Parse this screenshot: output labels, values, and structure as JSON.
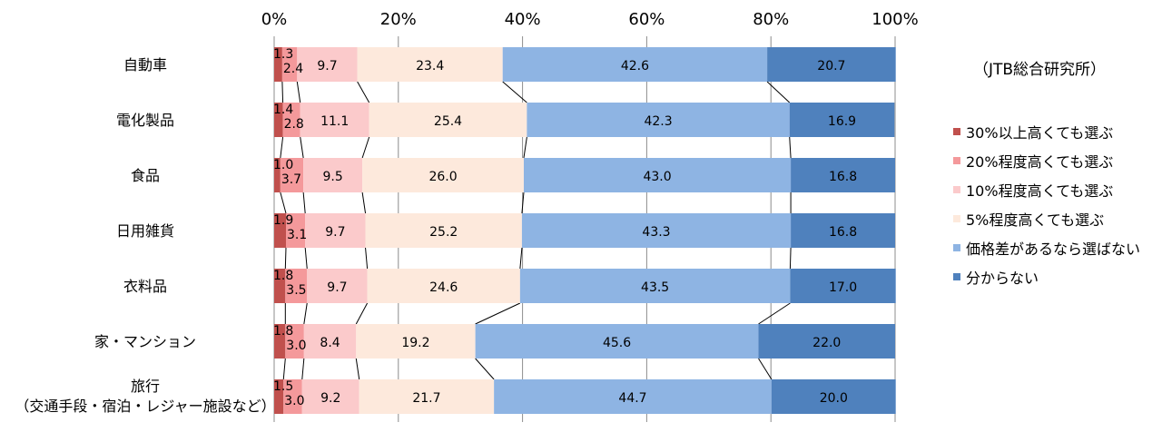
{
  "chart_data": {
    "type": "bar",
    "stacked": "percent",
    "orientation": "horizontal",
    "source_note": "（JTB総合研究所）",
    "x_ticks": [
      "0%",
      "20%",
      "40%",
      "60%",
      "80%",
      "100%"
    ],
    "xlim": [
      0,
      100
    ],
    "categories": [
      [
        "自動車"
      ],
      [
        "電化製品"
      ],
      [
        "食品"
      ],
      [
        "日用雑貨"
      ],
      [
        "衣料品"
      ],
      [
        "家・マンション"
      ],
      [
        "旅行",
        "（交通手段・宿泊・レジャー施設など）"
      ]
    ],
    "series": [
      {
        "name": "30%以上高くても選ぶ",
        "color": "#c0504d",
        "values": [
          1.3,
          1.4,
          1.0,
          1.9,
          1.8,
          1.8,
          1.5
        ]
      },
      {
        "name": "20%程度高くても選ぶ",
        "color": "#f4999b",
        "values": [
          2.4,
          2.8,
          3.7,
          3.1,
          3.5,
          3.0,
          3.0
        ]
      },
      {
        "name": "10%程度高くても選ぶ",
        "color": "#fbcacb",
        "values": [
          9.7,
          11.1,
          9.5,
          9.7,
          9.7,
          8.4,
          9.2
        ]
      },
      {
        "name": "5%程度高くても選ぶ",
        "color": "#fde9dc",
        "values": [
          23.4,
          25.4,
          26.0,
          25.2,
          24.6,
          19.2,
          21.7
        ]
      },
      {
        "name": "価格差があるなら選ばない",
        "color": "#8eb4e3",
        "values": [
          42.6,
          42.3,
          43.0,
          43.3,
          43.5,
          45.6,
          44.7
        ]
      },
      {
        "name": "分からない",
        "color": "#4f81bd",
        "values": [
          20.7,
          16.9,
          16.8,
          16.8,
          17.0,
          22.0,
          20.0
        ]
      }
    ],
    "grid": true,
    "series_lines": true,
    "legend_position": "right"
  }
}
